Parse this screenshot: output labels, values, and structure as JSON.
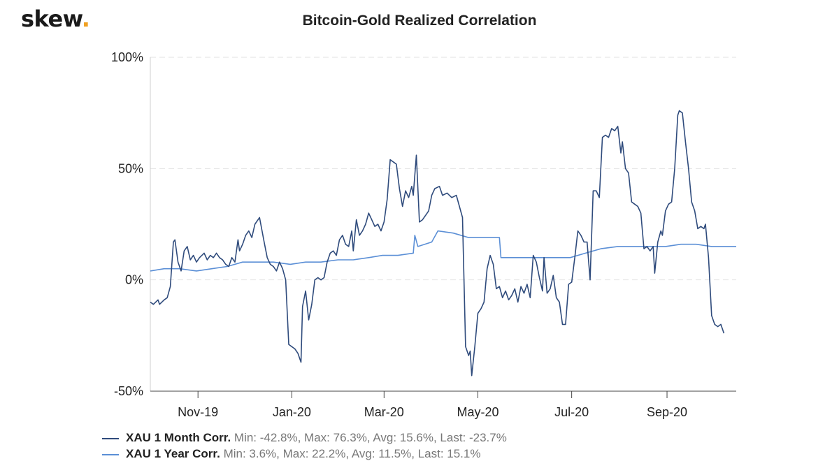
{
  "brand": {
    "name": "skew",
    "dot": "."
  },
  "chart_data": {
    "type": "line",
    "title": "Bitcoin-Gold Realized Correlation",
    "xlabel": "",
    "ylabel": "",
    "x_ticks": [
      "Nov-19",
      "Jan-20",
      "Mar-20",
      "May-20",
      "Jul-20",
      "Sep-20"
    ],
    "y_ticks": [
      "100%",
      "50%",
      "0%",
      "-50%"
    ],
    "y_tick_values": [
      100,
      50,
      0,
      -50
    ],
    "ylim": [
      -50,
      100
    ],
    "x_range": [
      "2019-10-01",
      "2020-10-16"
    ],
    "grid": true,
    "legend_position": "bottom-left",
    "series": [
      {
        "name": "XAU 1 Month Corr.",
        "stats": "Min: -42.8%, Max: 76.3%, Avg: 15.6%, Last: -23.7%",
        "color": "#2f4b7c",
        "points": [
          [
            "2019-10-01",
            -10
          ],
          [
            "2019-10-03",
            -11
          ],
          [
            "2019-10-06",
            -9
          ],
          [
            "2019-10-07",
            -11
          ],
          [
            "2019-10-10",
            -9
          ],
          [
            "2019-10-12",
            -8
          ],
          [
            "2019-10-14",
            -3
          ],
          [
            "2019-10-16",
            17
          ],
          [
            "2019-10-17",
            18
          ],
          [
            "2019-10-19",
            8
          ],
          [
            "2019-10-21",
            4
          ],
          [
            "2019-10-23",
            13
          ],
          [
            "2019-10-25",
            15
          ],
          [
            "2019-10-27",
            9
          ],
          [
            "2019-10-29",
            11
          ],
          [
            "2019-10-31",
            8
          ],
          [
            "2019-11-02",
            10
          ],
          [
            "2019-11-05",
            12
          ],
          [
            "2019-11-07",
            9
          ],
          [
            "2019-11-09",
            11
          ],
          [
            "2019-11-11",
            10
          ],
          [
            "2019-11-13",
            12
          ],
          [
            "2019-11-15",
            10
          ],
          [
            "2019-11-17",
            9
          ],
          [
            "2019-11-19",
            7
          ],
          [
            "2019-11-21",
            6
          ],
          [
            "2019-11-23",
            10
          ],
          [
            "2019-11-25",
            8
          ],
          [
            "2019-11-27",
            18
          ],
          [
            "2019-11-28",
            13
          ],
          [
            "2019-11-30",
            16
          ],
          [
            "2019-12-02",
            20
          ],
          [
            "2019-12-04",
            22
          ],
          [
            "2019-12-06",
            19
          ],
          [
            "2019-12-08",
            25
          ],
          [
            "2019-12-11",
            28
          ],
          [
            "2019-12-14",
            17
          ],
          [
            "2019-12-16",
            10
          ],
          [
            "2019-12-18",
            7
          ],
          [
            "2019-12-20",
            6
          ],
          [
            "2019-12-22",
            4
          ],
          [
            "2019-12-24",
            8
          ],
          [
            "2019-12-26",
            5
          ],
          [
            "2019-12-28",
            0
          ],
          [
            "2019-12-30",
            -29
          ],
          [
            "2020-01-01",
            -30
          ],
          [
            "2020-01-03",
            -31
          ],
          [
            "2020-01-05",
            -33
          ],
          [
            "2020-01-07",
            -37
          ],
          [
            "2020-01-08",
            -12
          ],
          [
            "2020-01-10",
            -5
          ],
          [
            "2020-01-12",
            -18
          ],
          [
            "2020-01-14",
            -11
          ],
          [
            "2020-01-16",
            0
          ],
          [
            "2020-01-18",
            1
          ],
          [
            "2020-01-20",
            0
          ],
          [
            "2020-01-22",
            1
          ],
          [
            "2020-01-24",
            8
          ],
          [
            "2020-01-26",
            12
          ],
          [
            "2020-01-28",
            13
          ],
          [
            "2020-01-30",
            11
          ],
          [
            "2020-02-01",
            18
          ],
          [
            "2020-02-03",
            20
          ],
          [
            "2020-02-05",
            16
          ],
          [
            "2020-02-07",
            15
          ],
          [
            "2020-02-09",
            22
          ],
          [
            "2020-02-10",
            13
          ],
          [
            "2020-02-12",
            27
          ],
          [
            "2020-02-14",
            20
          ],
          [
            "2020-02-16",
            22
          ],
          [
            "2020-02-18",
            25
          ],
          [
            "2020-02-20",
            30
          ],
          [
            "2020-02-22",
            27
          ],
          [
            "2020-02-24",
            24
          ],
          [
            "2020-02-26",
            25
          ],
          [
            "2020-02-28",
            22
          ],
          [
            "2020-03-01",
            26
          ],
          [
            "2020-03-03",
            36
          ],
          [
            "2020-03-05",
            54
          ],
          [
            "2020-03-07",
            53
          ],
          [
            "2020-03-09",
            52
          ],
          [
            "2020-03-11",
            41
          ],
          [
            "2020-03-13",
            33
          ],
          [
            "2020-03-15",
            40
          ],
          [
            "2020-03-17",
            37
          ],
          [
            "2020-03-19",
            42
          ],
          [
            "2020-03-20",
            38
          ],
          [
            "2020-03-22",
            56
          ],
          [
            "2020-03-24",
            26
          ],
          [
            "2020-03-26",
            27
          ],
          [
            "2020-03-28",
            29
          ],
          [
            "2020-03-30",
            31
          ],
          [
            "2020-04-01",
            38
          ],
          [
            "2020-04-03",
            41
          ],
          [
            "2020-04-06",
            42
          ],
          [
            "2020-04-08",
            38
          ],
          [
            "2020-04-11",
            39
          ],
          [
            "2020-04-14",
            37
          ],
          [
            "2020-04-17",
            38
          ],
          [
            "2020-04-19",
            33
          ],
          [
            "2020-04-21",
            28
          ],
          [
            "2020-04-23",
            -30
          ],
          [
            "2020-04-25",
            -34
          ],
          [
            "2020-04-26",
            -32
          ],
          [
            "2020-04-27",
            -43
          ],
          [
            "2020-04-29",
            -30
          ],
          [
            "2020-05-01",
            -15
          ],
          [
            "2020-05-03",
            -13
          ],
          [
            "2020-05-05",
            -10
          ],
          [
            "2020-05-07",
            5
          ],
          [
            "2020-05-09",
            11
          ],
          [
            "2020-05-11",
            7
          ],
          [
            "2020-05-13",
            -4
          ],
          [
            "2020-05-15",
            -3
          ],
          [
            "2020-05-17",
            -8
          ],
          [
            "2020-05-19",
            -5
          ],
          [
            "2020-05-21",
            -9
          ],
          [
            "2020-05-23",
            -7
          ],
          [
            "2020-05-25",
            -4
          ],
          [
            "2020-05-27",
            -10
          ],
          [
            "2020-05-29",
            -3
          ],
          [
            "2020-05-31",
            -6
          ],
          [
            "2020-06-02",
            -2
          ],
          [
            "2020-06-04",
            -8
          ],
          [
            "2020-06-06",
            11
          ],
          [
            "2020-06-08",
            8
          ],
          [
            "2020-06-10",
            1
          ],
          [
            "2020-06-12",
            -5
          ],
          [
            "2020-06-13",
            10
          ],
          [
            "2020-06-15",
            -6
          ],
          [
            "2020-06-17",
            -4
          ],
          [
            "2020-06-19",
            2
          ],
          [
            "2020-06-21",
            -8
          ],
          [
            "2020-06-23",
            -10
          ],
          [
            "2020-06-25",
            -20
          ],
          [
            "2020-06-27",
            -20
          ],
          [
            "2020-06-29",
            -2
          ],
          [
            "2020-07-01",
            -1
          ],
          [
            "2020-07-03",
            10
          ],
          [
            "2020-07-05",
            22
          ],
          [
            "2020-07-07",
            20
          ],
          [
            "2020-07-09",
            17
          ],
          [
            "2020-07-11",
            17
          ],
          [
            "2020-07-13",
            0
          ],
          [
            "2020-07-15",
            40
          ],
          [
            "2020-07-17",
            40
          ],
          [
            "2020-07-19",
            37
          ],
          [
            "2020-07-21",
            64
          ],
          [
            "2020-07-23",
            65
          ],
          [
            "2020-07-25",
            64
          ],
          [
            "2020-07-27",
            68
          ],
          [
            "2020-07-29",
            67
          ],
          [
            "2020-07-31",
            69
          ],
          [
            "2020-08-02",
            57
          ],
          [
            "2020-08-03",
            62
          ],
          [
            "2020-08-05",
            50
          ],
          [
            "2020-08-07",
            48
          ],
          [
            "2020-08-09",
            35
          ],
          [
            "2020-08-11",
            34
          ],
          [
            "2020-08-13",
            33
          ],
          [
            "2020-08-15",
            30
          ],
          [
            "2020-08-17",
            14
          ],
          [
            "2020-08-19",
            15
          ],
          [
            "2020-08-21",
            13
          ],
          [
            "2020-08-23",
            15
          ],
          [
            "2020-08-24",
            3
          ],
          [
            "2020-08-26",
            17
          ],
          [
            "2020-08-28",
            22
          ],
          [
            "2020-08-29",
            20
          ],
          [
            "2020-08-31",
            31
          ],
          [
            "2020-09-02",
            34
          ],
          [
            "2020-09-04",
            35
          ],
          [
            "2020-09-06",
            50
          ],
          [
            "2020-09-08",
            74
          ],
          [
            "2020-09-09",
            76
          ],
          [
            "2020-09-11",
            75
          ],
          [
            "2020-09-13",
            62
          ],
          [
            "2020-09-15",
            50
          ],
          [
            "2020-09-17",
            35
          ],
          [
            "2020-09-19",
            31
          ],
          [
            "2020-09-21",
            23
          ],
          [
            "2020-09-23",
            24
          ],
          [
            "2020-09-25",
            23
          ],
          [
            "2020-09-26",
            25
          ],
          [
            "2020-09-28",
            10
          ],
          [
            "2020-09-30",
            -16
          ],
          [
            "2020-10-02",
            -20
          ],
          [
            "2020-10-04",
            -21
          ],
          [
            "2020-10-06",
            -20
          ],
          [
            "2020-10-08",
            -24
          ]
        ]
      },
      {
        "name": "XAU 1 Year Corr.",
        "stats": "Min: 3.6%, Max: 22.2%, Avg: 11.5%, Last: 15.1%",
        "color": "#5b8fd6",
        "points": [
          [
            "2019-10-01",
            4
          ],
          [
            "2019-10-10",
            5
          ],
          [
            "2019-10-20",
            5
          ],
          [
            "2019-10-31",
            4
          ],
          [
            "2019-11-10",
            5
          ],
          [
            "2019-11-20",
            6
          ],
          [
            "2019-11-30",
            8
          ],
          [
            "2019-12-10",
            8
          ],
          [
            "2019-12-20",
            8
          ],
          [
            "2019-12-31",
            7
          ],
          [
            "2020-01-10",
            8
          ],
          [
            "2020-01-20",
            8
          ],
          [
            "2020-01-31",
            9
          ],
          [
            "2020-02-10",
            9
          ],
          [
            "2020-02-20",
            10
          ],
          [
            "2020-02-29",
            11
          ],
          [
            "2020-03-10",
            11
          ],
          [
            "2020-03-20",
            12
          ],
          [
            "2020-03-21",
            20
          ],
          [
            "2020-03-23",
            15
          ],
          [
            "2020-04-01",
            17
          ],
          [
            "2020-04-05",
            22
          ],
          [
            "2020-04-15",
            21
          ],
          [
            "2020-04-25",
            19
          ],
          [
            "2020-05-05",
            19
          ],
          [
            "2020-05-15",
            19
          ],
          [
            "2020-05-16",
            10
          ],
          [
            "2020-05-25",
            10
          ],
          [
            "2020-06-05",
            10
          ],
          [
            "2020-06-20",
            10
          ],
          [
            "2020-06-30",
            10
          ],
          [
            "2020-07-10",
            12
          ],
          [
            "2020-07-20",
            14
          ],
          [
            "2020-07-31",
            15
          ],
          [
            "2020-08-10",
            15
          ],
          [
            "2020-08-20",
            15
          ],
          [
            "2020-08-31",
            15
          ],
          [
            "2020-09-10",
            16
          ],
          [
            "2020-09-20",
            16
          ],
          [
            "2020-09-30",
            15
          ],
          [
            "2020-10-16",
            15
          ]
        ]
      }
    ]
  }
}
